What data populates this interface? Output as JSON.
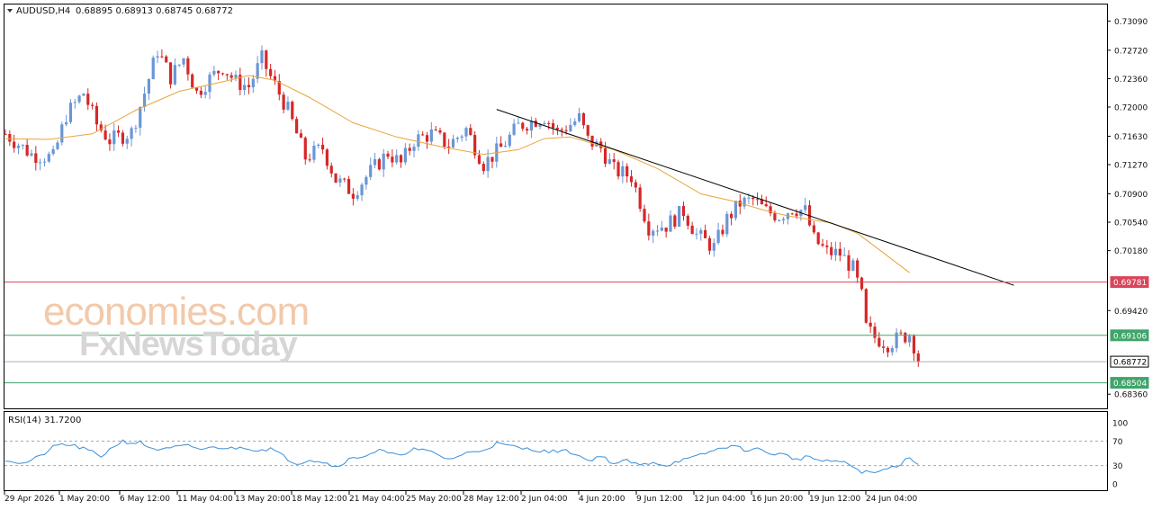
{
  "header": {
    "symbol": "AUDUSD,H4",
    "ohlc": "0.68895 0.68913 0.68745 0.68772"
  },
  "watermark": {
    "line1": "economies.com",
    "line2": "FxNewsToday"
  },
  "rsi_panel": {
    "label": "RSI(14) 31.7200",
    "levels": [
      "100",
      "70",
      "30",
      "0"
    ]
  },
  "colors": {
    "bull": "#6a96d6",
    "bear": "#d62828",
    "ma": "#e8a53a",
    "rsi": "#3a8fd8",
    "resistance": "#d9455a",
    "support": "#3fa56a",
    "current": "#b0b0b0",
    "trend": "#000000"
  },
  "chart_data": [
    {
      "type": "candlestick",
      "title": "AUDUSD,H4",
      "ylim": [
        0.6818,
        0.733
      ],
      "y_ticks": [
        "0.73090",
        "0.72720",
        "0.72360",
        "0.72000",
        "0.71630",
        "0.71270",
        "0.70900",
        "0.70540",
        "0.70180",
        "0.69781",
        "0.69420",
        "0.69106",
        "0.68772",
        "0.68504",
        "0.68360"
      ],
      "x_ticks": [
        "29 Apr 2026",
        "1 May 20:00",
        "6 May 12:00",
        "11 May 04:00",
        "13 May 20:00",
        "18 May 12:00",
        "21 May 04:00",
        "25 May 20:00",
        "28 May 12:00",
        "2 Jun 04:00",
        "4 Jun 20:00",
        "9 Jun 12:00",
        "12 Jun 04:00",
        "16 Jun 20:00",
        "19 Jun 12:00",
        "24 Jun 04:00"
      ],
      "close_path": [
        [
          0,
          0.7166
        ],
        [
          6,
          0.714
        ],
        [
          11,
          0.7136
        ],
        [
          14,
          0.719
        ],
        [
          18,
          0.7218
        ],
        [
          21,
          0.7178
        ],
        [
          24,
          0.7158
        ],
        [
          29,
          0.7168
        ],
        [
          32,
          0.7218
        ],
        [
          35,
          0.7272
        ],
        [
          38,
          0.7238
        ],
        [
          41,
          0.7262
        ],
        [
          44,
          0.7218
        ],
        [
          47,
          0.7236
        ],
        [
          50,
          0.7251
        ],
        [
          53,
          0.7232
        ],
        [
          56,
          0.7226
        ],
        [
          59,
          0.7261
        ],
        [
          61,
          0.7238
        ],
        [
          65,
          0.7196
        ],
        [
          69,
          0.7136
        ],
        [
          73,
          0.7148
        ],
        [
          76,
          0.7108
        ],
        [
          80,
          0.7092
        ],
        [
          84,
          0.7118
        ],
        [
          88,
          0.7142
        ],
        [
          91,
          0.7128
        ],
        [
          94,
          0.7158
        ],
        [
          98,
          0.7166
        ],
        [
          102,
          0.7152
        ],
        [
          106,
          0.7172
        ],
        [
          110,
          0.7128
        ],
        [
          114,
          0.7148
        ],
        [
          118,
          0.7176
        ],
        [
          121,
          0.7182
        ],
        [
          124,
          0.7188
        ],
        [
          127,
          0.7168
        ],
        [
          130,
          0.7178
        ],
        [
          132,
          0.7186
        ],
        [
          134,
          0.7158
        ],
        [
          137,
          0.7148
        ],
        [
          140,
          0.712
        ],
        [
          144,
          0.7112
        ],
        [
          148,
          0.7048
        ],
        [
          152,
          0.705
        ],
        [
          156,
          0.7068
        ],
        [
          159,
          0.7038
        ],
        [
          163,
          0.7022
        ],
        [
          166,
          0.7058
        ],
        [
          169,
          0.7078
        ],
        [
          172,
          0.7082
        ],
        [
          175,
          0.7068
        ],
        [
          178,
          0.7062
        ],
        [
          181,
          0.7072
        ],
        [
          184,
          0.7068
        ],
        [
          186,
          0.7032
        ],
        [
          189,
          0.7016
        ],
        [
          192,
          0.7014
        ],
        [
          195,
          0.6995
        ],
        [
          197,
          0.696
        ],
        [
          198,
          0.692
        ],
        [
          200,
          0.6908
        ],
        [
          203,
          0.69
        ],
        [
          206,
          0.6908
        ],
        [
          208,
          0.6912
        ],
        [
          210,
          0.6885
        ]
      ],
      "moving_average_path": [
        [
          0,
          0.716
        ],
        [
          10,
          0.7159
        ],
        [
          20,
          0.7166
        ],
        [
          30,
          0.7196
        ],
        [
          40,
          0.722
        ],
        [
          50,
          0.7232
        ],
        [
          56,
          0.724
        ],
        [
          62,
          0.7234
        ],
        [
          70,
          0.7212
        ],
        [
          80,
          0.718
        ],
        [
          90,
          0.7162
        ],
        [
          100,
          0.715
        ],
        [
          110,
          0.714
        ],
        [
          118,
          0.7146
        ],
        [
          124,
          0.716
        ],
        [
          130,
          0.7162
        ],
        [
          140,
          0.7146
        ],
        [
          150,
          0.7122
        ],
        [
          160,
          0.709
        ],
        [
          168,
          0.708
        ],
        [
          174,
          0.707
        ],
        [
          180,
          0.7062
        ],
        [
          190,
          0.7053
        ],
        [
          196,
          0.704
        ],
        [
          202,
          0.7015
        ],
        [
          208,
          0.699
        ]
      ],
      "trendline": [
        [
          113,
          0.7197
        ],
        [
          232,
          0.6974
        ]
      ],
      "horizontal_levels": [
        {
          "value": 0.69781,
          "label": "0.69781",
          "kind": "resistance"
        },
        {
          "value": 0.69106,
          "label": "0.69106",
          "kind": "support"
        },
        {
          "value": 0.68772,
          "label": "0.68772",
          "kind": "current"
        },
        {
          "value": 0.68504,
          "label": "0.68504",
          "kind": "support"
        }
      ],
      "bar_count": 211
    },
    {
      "type": "line",
      "title": "RSI(14) 31.7200",
      "ylim": [
        0,
        100
      ],
      "reference_lines": [
        70,
        30
      ],
      "series": [
        {
          "name": "RSI(14)",
          "values": [
            [
              0,
              40
            ],
            [
              4,
              33
            ],
            [
              8,
              45
            ],
            [
              11,
              60
            ],
            [
              13,
              65
            ],
            [
              16,
              62
            ],
            [
              19,
              55
            ],
            [
              22,
              45
            ],
            [
              25,
              62
            ],
            [
              27,
              70
            ],
            [
              29,
              67
            ],
            [
              31,
              68
            ],
            [
              33,
              60
            ],
            [
              36,
              55
            ],
            [
              39,
              60
            ],
            [
              42,
              62
            ],
            [
              45,
              57
            ],
            [
              49,
              60
            ],
            [
              52,
              58
            ],
            [
              55,
              60
            ],
            [
              58,
              55
            ],
            [
              61,
              58
            ],
            [
              64,
              45
            ],
            [
              67,
              33
            ],
            [
              70,
              40
            ],
            [
              73,
              36
            ],
            [
              76,
              28
            ],
            [
              79,
              40
            ],
            [
              82,
              45
            ],
            [
              86,
              55
            ],
            [
              90,
              46
            ],
            [
              94,
              57
            ],
            [
              98,
              52
            ],
            [
              102,
              40
            ],
            [
              106,
              50
            ],
            [
              110,
              56
            ],
            [
              113,
              66
            ],
            [
              116,
              62
            ],
            [
              119,
              58
            ],
            [
              122,
              56
            ],
            [
              125,
              52
            ],
            [
              128,
              55
            ],
            [
              131,
              50
            ],
            [
              134,
              38
            ],
            [
              137,
              46
            ],
            [
              140,
              33
            ],
            [
              143,
              38
            ],
            [
              146,
              30
            ],
            [
              149,
              36
            ],
            [
              152,
              30
            ],
            [
              155,
              38
            ],
            [
              158,
              42
            ],
            [
              161,
              50
            ],
            [
              164,
              57
            ],
            [
              167,
              63
            ],
            [
              170,
              56
            ],
            [
              173,
              57
            ],
            [
              176,
              50
            ],
            [
              179,
              48
            ],
            [
              182,
              40
            ],
            [
              185,
              45
            ],
            [
              188,
              36
            ],
            [
              191,
              38
            ],
            [
              194,
              32
            ],
            [
              197,
              20
            ],
            [
              200,
              18
            ],
            [
              203,
              25
            ],
            [
              206,
              33
            ],
            [
              208,
              45
            ],
            [
              210,
              31.72
            ]
          ]
        }
      ]
    }
  ]
}
